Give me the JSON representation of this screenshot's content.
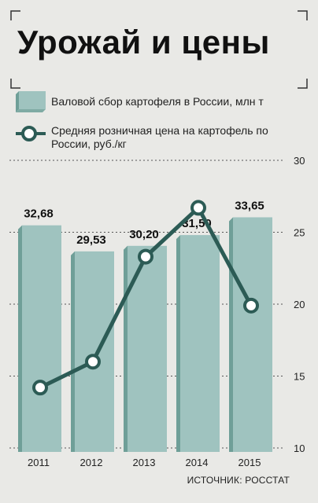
{
  "title": "Урожай и цены",
  "source": "ИСТОЧНИК: РОССТАТ",
  "legend": {
    "bars": "Валовой сбор картофеля в России, млн т",
    "line": "Средняя розничная цена на картофель по России, руб./кг"
  },
  "colors": {
    "background": "#e9e9e6",
    "bar": "#9fc3bf",
    "bar_shadow": "#6f9f98",
    "line": "#2c5b55",
    "grid": "#555555"
  },
  "chart_data": {
    "type": "bar",
    "categories": [
      "2011",
      "2012",
      "2013",
      "2014",
      "2015"
    ],
    "series": [
      {
        "name": "Валовой сбор картофеля в России, млн т",
        "type": "bar",
        "values": [
          32.68,
          29.53,
          30.2,
          31.5,
          33.65
        ],
        "labels": [
          "32,68",
          "29,53",
          "30,20",
          "31,50",
          "33,65"
        ]
      },
      {
        "name": "Средняя розничная цена на картофель по России, руб./кг",
        "type": "line",
        "values": [
          14.2,
          16.0,
          23.3,
          26.7,
          19.9
        ]
      }
    ],
    "y2": {
      "range": [
        10,
        30
      ],
      "ticks": [
        "10",
        "15",
        "20",
        "25",
        "30"
      ]
    },
    "grid": "dashed-horizontal"
  }
}
